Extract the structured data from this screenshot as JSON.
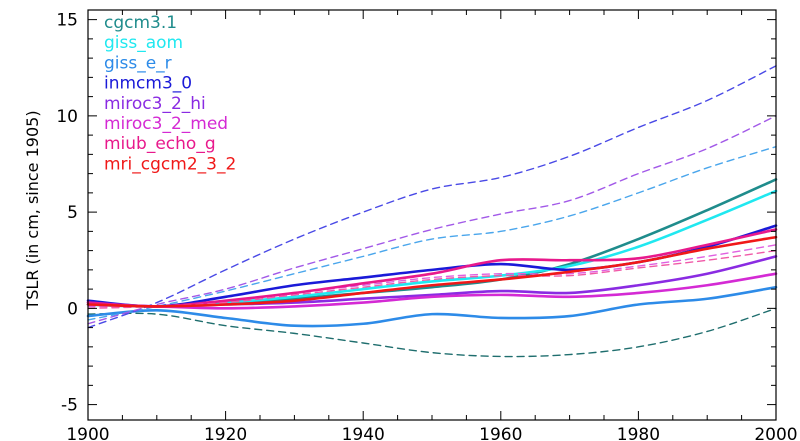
{
  "chart_data": {
    "type": "line",
    "title": "",
    "xlabel": "",
    "ylabel": "TSLR (in cm, since 1905)",
    "xlim": [
      1900,
      2000
    ],
    "ylim": [
      -5.8,
      15.5
    ],
    "x_ticks": [
      1900,
      1920,
      1940,
      1960,
      1980,
      2000
    ],
    "y_ticks": [
      -5,
      0,
      5,
      10,
      15
    ],
    "grid": false,
    "legend_position": "top-left",
    "series": [
      {
        "name": "cgcm3.1",
        "color": "#1f8c8c",
        "dash": "solid",
        "points": [
          [
            1900,
            0.2
          ],
          [
            1910,
            0.1
          ],
          [
            1920,
            0.3
          ],
          [
            1930,
            0.5
          ],
          [
            1940,
            0.8
          ],
          [
            1950,
            1.1
          ],
          [
            1960,
            1.5
          ],
          [
            1970,
            2.3
          ],
          [
            1980,
            3.6
          ],
          [
            1990,
            5.1
          ],
          [
            2000,
            6.7
          ]
        ]
      },
      {
        "name": "cgcm3.1",
        "color": "#1f6e6e",
        "dash": "dashed",
        "points": [
          [
            1900,
            -0.3
          ],
          [
            1910,
            -0.3
          ],
          [
            1920,
            -0.9
          ],
          [
            1930,
            -1.3
          ],
          [
            1940,
            -1.8
          ],
          [
            1950,
            -2.3
          ],
          [
            1960,
            -2.5
          ],
          [
            1970,
            -2.4
          ],
          [
            1980,
            -2.0
          ],
          [
            1990,
            -1.2
          ],
          [
            2000,
            0.0
          ]
        ]
      },
      {
        "name": "giss_aom",
        "color": "#20e8f0",
        "dash": "solid",
        "points": [
          [
            1900,
            0.2
          ],
          [
            1910,
            0.1
          ],
          [
            1920,
            0.3
          ],
          [
            1930,
            0.6
          ],
          [
            1940,
            1.0
          ],
          [
            1950,
            1.4
          ],
          [
            1960,
            1.7
          ],
          [
            1970,
            2.2
          ],
          [
            1980,
            3.2
          ],
          [
            1990,
            4.6
          ],
          [
            2000,
            6.1
          ]
        ]
      },
      {
        "name": "giss_e_r",
        "color": "#2d8be8",
        "dash": "solid",
        "points": [
          [
            1900,
            -0.4
          ],
          [
            1910,
            -0.1
          ],
          [
            1920,
            -0.5
          ],
          [
            1930,
            -0.9
          ],
          [
            1940,
            -0.8
          ],
          [
            1950,
            -0.3
          ],
          [
            1960,
            -0.5
          ],
          [
            1970,
            -0.4
          ],
          [
            1980,
            0.2
          ],
          [
            1990,
            0.5
          ],
          [
            2000,
            1.1
          ]
        ]
      },
      {
        "name": "giss_e_r",
        "color": "#4aa6ec",
        "dash": "dashed",
        "points": [
          [
            1900,
            -0.6
          ],
          [
            1910,
            0.1
          ],
          [
            1920,
            0.9
          ],
          [
            1930,
            1.8
          ],
          [
            1940,
            2.7
          ],
          [
            1950,
            3.6
          ],
          [
            1960,
            4.0
          ],
          [
            1970,
            4.8
          ],
          [
            1980,
            6.0
          ],
          [
            1990,
            7.3
          ],
          [
            2000,
            8.4
          ]
        ]
      },
      {
        "name": "inmcm3_0",
        "color": "#1a1ad8",
        "dash": "solid",
        "points": [
          [
            1900,
            0.4
          ],
          [
            1910,
            0.1
          ],
          [
            1920,
            0.6
          ],
          [
            1930,
            1.2
          ],
          [
            1940,
            1.6
          ],
          [
            1950,
            2.0
          ],
          [
            1960,
            2.3
          ],
          [
            1970,
            2.0
          ],
          [
            1980,
            2.4
          ],
          [
            1990,
            3.2
          ],
          [
            2000,
            4.3
          ]
        ]
      },
      {
        "name": "inmcm3_0",
        "color": "#4a4ae6",
        "dash": "dashed",
        "points": [
          [
            1900,
            -1.0
          ],
          [
            1910,
            0.3
          ],
          [
            1920,
            2.0
          ],
          [
            1930,
            3.6
          ],
          [
            1940,
            5.0
          ],
          [
            1950,
            6.2
          ],
          [
            1960,
            6.8
          ],
          [
            1970,
            7.9
          ],
          [
            1980,
            9.4
          ],
          [
            1990,
            10.8
          ],
          [
            2000,
            12.6
          ]
        ]
      },
      {
        "name": "miroc3_2_hi",
        "color": "#8a2be2",
        "dash": "solid",
        "points": [
          [
            1900,
            0.3
          ],
          [
            1910,
            0.1
          ],
          [
            1920,
            0.2
          ],
          [
            1930,
            0.3
          ],
          [
            1940,
            0.5
          ],
          [
            1950,
            0.7
          ],
          [
            1960,
            0.9
          ],
          [
            1970,
            0.8
          ],
          [
            1980,
            1.2
          ],
          [
            1990,
            1.8
          ],
          [
            2000,
            2.7
          ]
        ]
      },
      {
        "name": "miroc3_2_hi",
        "color": "#a259e8",
        "dash": "dashed",
        "points": [
          [
            1900,
            -0.8
          ],
          [
            1910,
            0.2
          ],
          [
            1920,
            1.0
          ],
          [
            1930,
            2.1
          ],
          [
            1940,
            3.1
          ],
          [
            1950,
            4.1
          ],
          [
            1960,
            4.9
          ],
          [
            1970,
            5.6
          ],
          [
            1980,
            7.0
          ],
          [
            1990,
            8.3
          ],
          [
            2000,
            10.0
          ]
        ]
      },
      {
        "name": "miroc3_2_med",
        "color": "#d42ad4",
        "dash": "solid",
        "points": [
          [
            1900,
            0.2
          ],
          [
            1910,
            0.1
          ],
          [
            1920,
            0.0
          ],
          [
            1930,
            0.1
          ],
          [
            1940,
            0.3
          ],
          [
            1950,
            0.6
          ],
          [
            1960,
            0.7
          ],
          [
            1970,
            0.6
          ],
          [
            1980,
            0.8
          ],
          [
            1990,
            1.2
          ],
          [
            2000,
            1.8
          ]
        ]
      },
      {
        "name": "miroc3_2_med",
        "color": "#e060e0",
        "dash": "dashed",
        "points": [
          [
            1900,
            0.1
          ],
          [
            1910,
            0.1
          ],
          [
            1920,
            0.4
          ],
          [
            1930,
            0.8
          ],
          [
            1940,
            1.2
          ],
          [
            1950,
            1.6
          ],
          [
            1960,
            1.8
          ],
          [
            1970,
            1.8
          ],
          [
            1980,
            2.2
          ],
          [
            1990,
            2.7
          ],
          [
            2000,
            3.3
          ]
        ]
      },
      {
        "name": "miub_echo_g",
        "color": "#e8198c",
        "dash": "solid",
        "points": [
          [
            1900,
            0.3
          ],
          [
            1910,
            0.1
          ],
          [
            1920,
            0.4
          ],
          [
            1930,
            0.8
          ],
          [
            1940,
            1.3
          ],
          [
            1950,
            1.8
          ],
          [
            1960,
            2.5
          ],
          [
            1970,
            2.5
          ],
          [
            1980,
            2.6
          ],
          [
            1990,
            3.3
          ],
          [
            2000,
            4.1
          ]
        ]
      },
      {
        "name": "miub_echo_g",
        "color": "#f05aa8",
        "dash": "dashed",
        "points": [
          [
            1900,
            0.0
          ],
          [
            1910,
            0.1
          ],
          [
            1920,
            0.3
          ],
          [
            1930,
            0.7
          ],
          [
            1940,
            1.1
          ],
          [
            1950,
            1.5
          ],
          [
            1960,
            1.7
          ],
          [
            1970,
            1.7
          ],
          [
            1980,
            2.1
          ],
          [
            1990,
            2.5
          ],
          [
            2000,
            3.0
          ]
        ]
      },
      {
        "name": "mri_cgcm2_3_2",
        "color": "#f01818",
        "dash": "solid",
        "points": [
          [
            1900,
            0.2
          ],
          [
            1910,
            0.1
          ],
          [
            1920,
            0.2
          ],
          [
            1930,
            0.4
          ],
          [
            1940,
            0.8
          ],
          [
            1950,
            1.2
          ],
          [
            1960,
            1.5
          ],
          [
            1970,
            1.9
          ],
          [
            1980,
            2.4
          ],
          [
            1990,
            3.1
          ],
          [
            2000,
            3.7
          ]
        ]
      }
    ],
    "legend": [
      {
        "label": "cgcm3.1",
        "color": "#1f8c8c"
      },
      {
        "label": "giss_aom",
        "color": "#20e8f0"
      },
      {
        "label": "giss_e_r",
        "color": "#2d8be8"
      },
      {
        "label": "inmcm3_0",
        "color": "#1a1ad8"
      },
      {
        "label": "miroc3_2_hi",
        "color": "#8a2be2"
      },
      {
        "label": "miroc3_2_med",
        "color": "#d42ad4"
      },
      {
        "label": "miub_echo_g",
        "color": "#e8198c"
      },
      {
        "label": "mri_cgcm2_3_2",
        "color": "#f01818"
      }
    ]
  }
}
